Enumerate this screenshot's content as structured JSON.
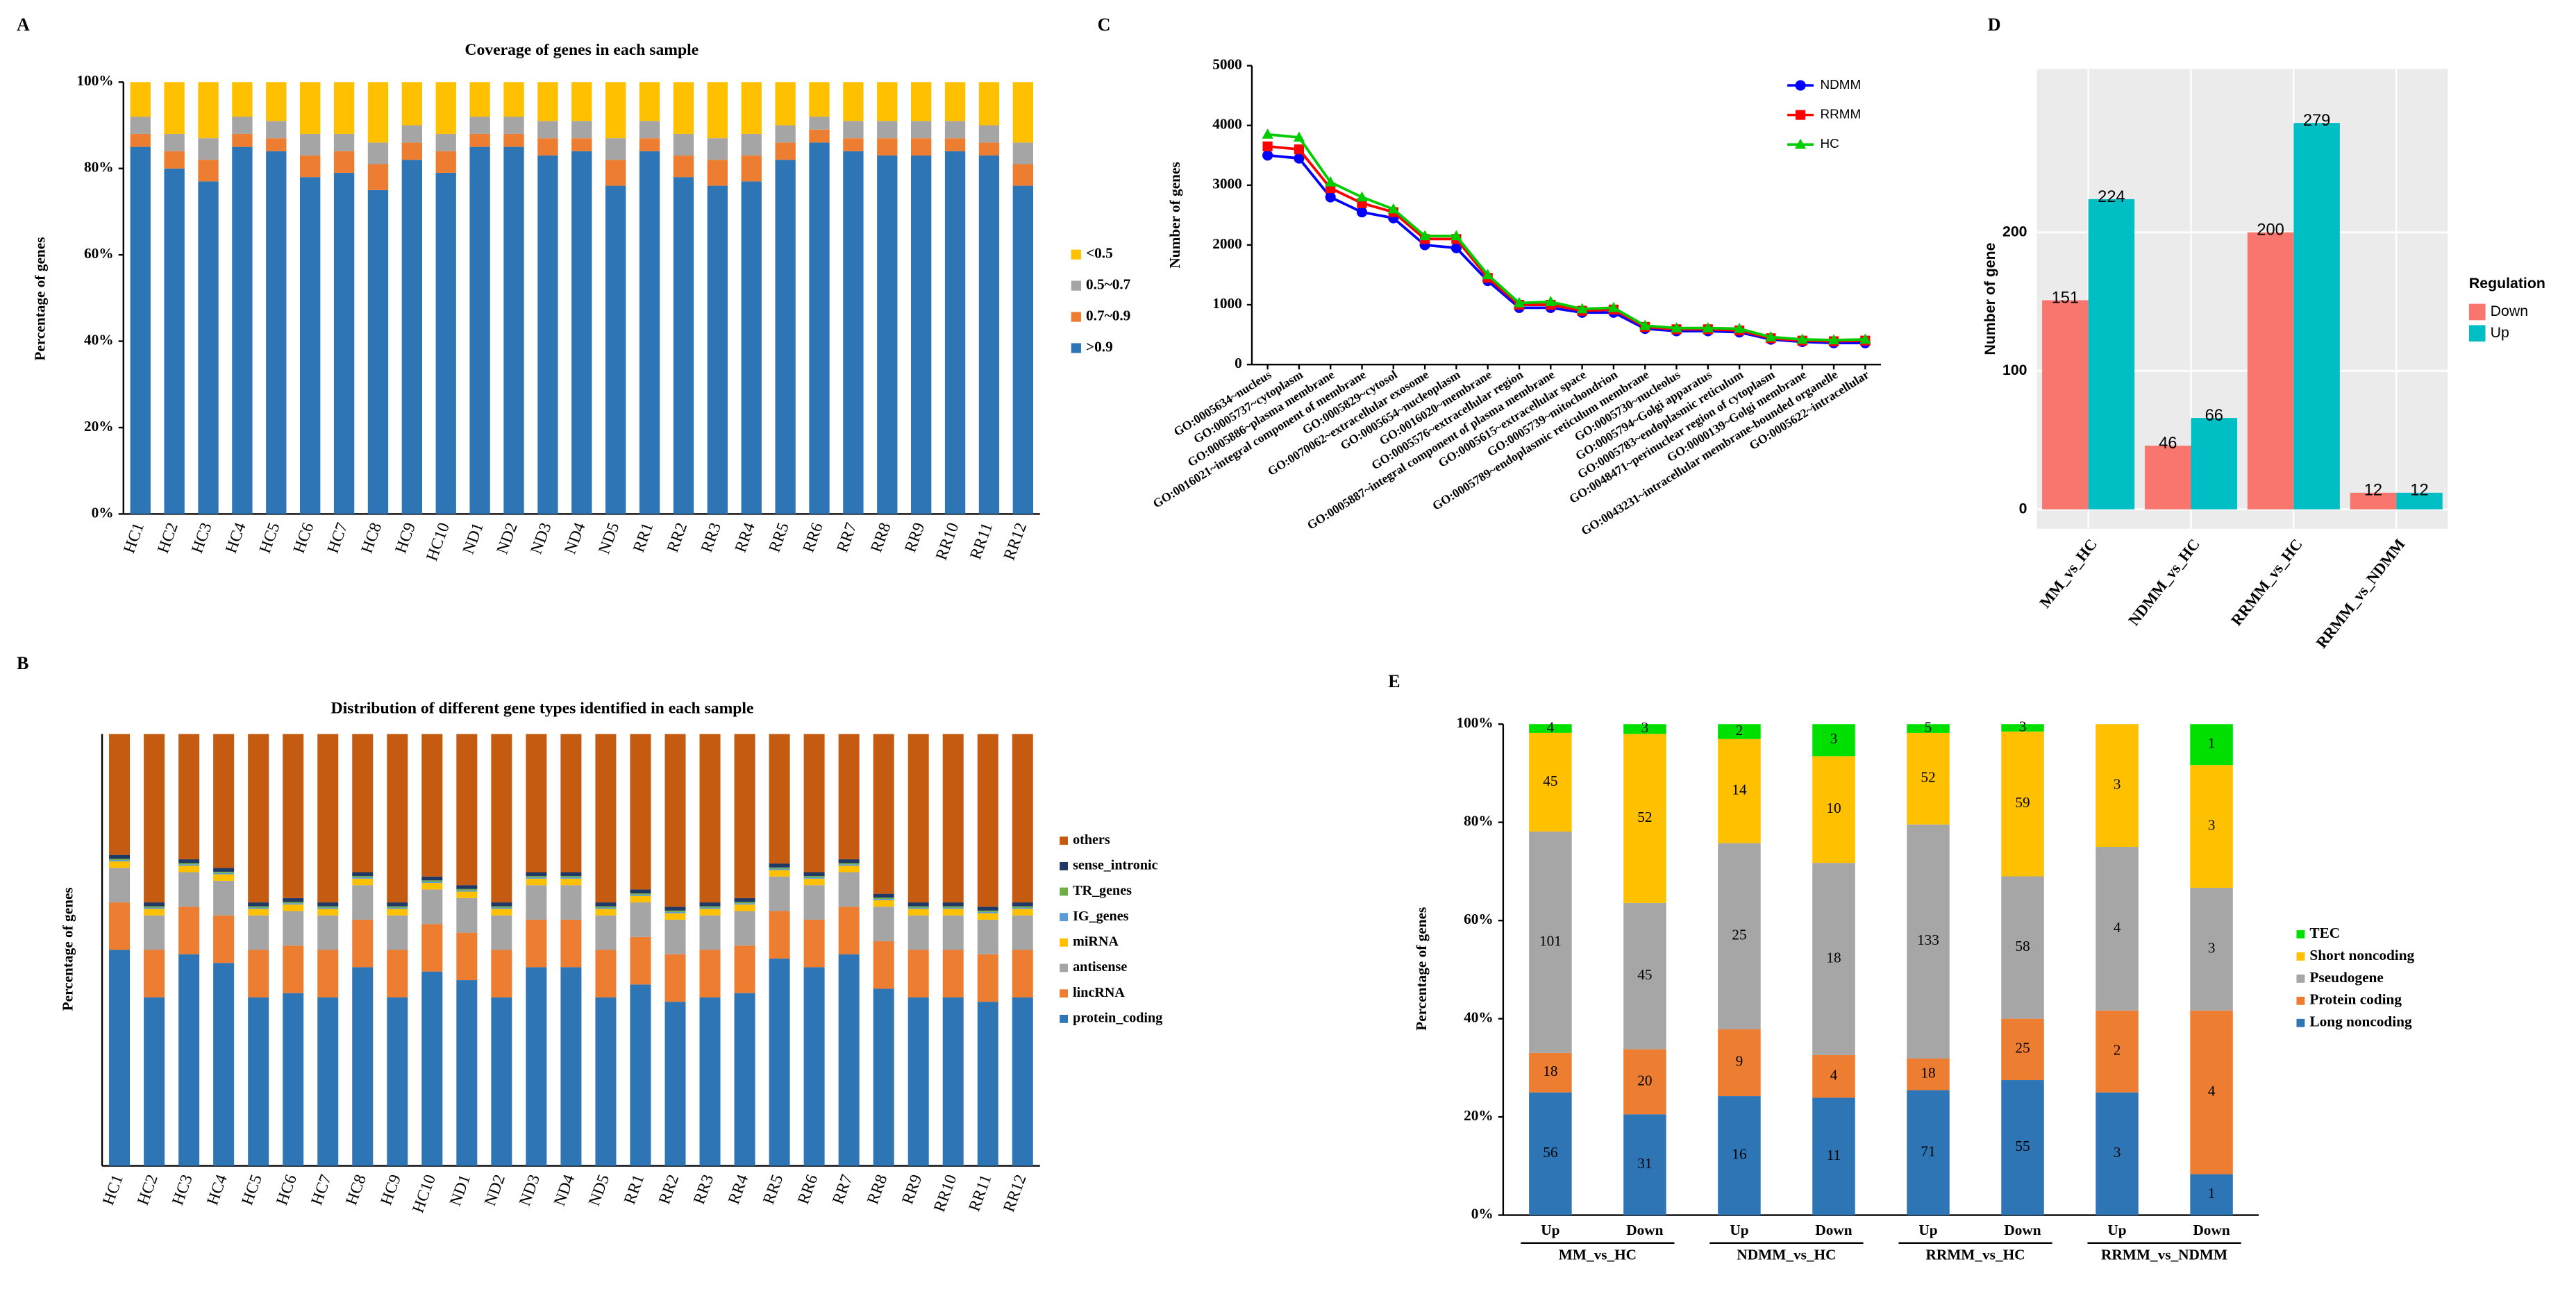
{
  "chart_data": [
    {
      "type": "bar",
      "stacked": true,
      "panel_label": "A",
      "title": "Coverage of genes in each sample",
      "ylabel": "Percentage of genes",
      "categories": [
        "HC1",
        "HC2",
        "HC3",
        "HC4",
        "HC5",
        "HC6",
        "HC7",
        "HC8",
        "HC9",
        "HC10",
        "ND1",
        "ND2",
        "ND3",
        "ND4",
        "ND5",
        "RR1",
        "RR2",
        "RR3",
        "RR4",
        "RR5",
        "RR6",
        "RR7",
        "RR8",
        "RR9",
        "RR10",
        "RR11",
        "RR12"
      ],
      "series": [
        {
          "name": ">0.9",
          "color": "#2e75b6",
          "values": [
            85,
            80,
            77,
            85,
            84,
            78,
            79,
            75,
            82,
            79,
            85,
            85,
            83,
            84,
            76,
            84,
            78,
            76,
            77,
            82,
            86,
            84,
            83,
            83,
            84,
            83,
            76
          ]
        },
        {
          "name": "0.7~0.9",
          "color": "#ed7d31",
          "values": [
            3,
            4,
            5,
            3,
            3,
            5,
            5,
            6,
            4,
            5,
            3,
            3,
            4,
            3,
            6,
            3,
            5,
            6,
            6,
            4,
            3,
            3,
            4,
            4,
            3,
            3,
            5
          ]
        },
        {
          "name": "0.5~0.7",
          "color": "#a5a5a5",
          "values": [
            4,
            4,
            5,
            4,
            4,
            5,
            4,
            5,
            4,
            4,
            4,
            4,
            4,
            4,
            5,
            4,
            5,
            5,
            5,
            4,
            3,
            4,
            4,
            4,
            4,
            4,
            5
          ]
        },
        {
          "name": "<0.5",
          "color": "#ffc000",
          "values": [
            8,
            12,
            13,
            8,
            9,
            12,
            12,
            14,
            10,
            12,
            8,
            8,
            9,
            9,
            13,
            9,
            12,
            13,
            12,
            10,
            8,
            9,
            9,
            9,
            9,
            10,
            14
          ]
        }
      ],
      "ylim": [
        0,
        100
      ],
      "yticks": [
        {
          "value": 0,
          "label": "0%"
        },
        {
          "value": 20,
          "label": "20%"
        },
        {
          "value": 40,
          "label": "40%"
        },
        {
          "value": 60,
          "label": "60%"
        },
        {
          "value": 80,
          "label": "80%"
        },
        {
          "value": 100,
          "label": "100%"
        }
      ],
      "legend": "right"
    },
    {
      "type": "bar",
      "stacked": true,
      "panel_label": "B",
      "title": "Distribution of different gene types identified in each sample",
      "ylabel": "Percentage of genes",
      "categories": [
        "HC1",
        "HC2",
        "HC3",
        "HC4",
        "HC5",
        "HC6",
        "HC7",
        "HC8",
        "HC9",
        "HC10",
        "ND1",
        "ND2",
        "ND3",
        "ND4",
        "ND5",
        "RR1",
        "RR2",
        "RR3",
        "RR4",
        "RR5",
        "RR6",
        "RR7",
        "RR8",
        "RR9",
        "RR10",
        "RR11",
        "RR12"
      ],
      "series": [
        {
          "name": "protein_coding",
          "color": "#2e75b6",
          "values": [
            50,
            39,
            49,
            47,
            39,
            40,
            39,
            46,
            39,
            45,
            43,
            39,
            46,
            46,
            39,
            42,
            38,
            39,
            40,
            48,
            46,
            49,
            41,
            39,
            39,
            38,
            39
          ]
        },
        {
          "name": "lincRNA",
          "color": "#ed7d31",
          "values": [
            11,
            11,
            11,
            11,
            11,
            11,
            11,
            11,
            11,
            11,
            11,
            11,
            11,
            11,
            11,
            11,
            11,
            11,
            11,
            11,
            11,
            11,
            11,
            11,
            11,
            11,
            11
          ]
        },
        {
          "name": "antisense",
          "color": "#a5a5a5",
          "values": [
            8,
            8,
            8,
            8,
            8,
            8,
            8,
            8,
            8,
            8,
            8,
            8,
            8,
            8,
            8,
            8,
            8,
            8,
            8,
            8,
            8,
            8,
            8,
            8,
            8,
            8,
            8
          ]
        },
        {
          "name": "miRNA",
          "color": "#ffc000",
          "values": [
            1.5,
            1.5,
            1.5,
            1.5,
            1.5,
            1.5,
            1.5,
            1.5,
            1.5,
            1.5,
            1.5,
            1.5,
            1.5,
            1.5,
            1.5,
            1.5,
            1.5,
            1.5,
            1.5,
            1.5,
            1.5,
            1.5,
            1.5,
            1.5,
            1.5,
            1.5,
            1.5
          ]
        },
        {
          "name": "IG_genes",
          "color": "#5b9bd5",
          "values": [
            0.3,
            0.3,
            0.3,
            0.3,
            0.3,
            0.3,
            0.3,
            0.3,
            0.3,
            0.3,
            0.3,
            0.3,
            0.3,
            0.3,
            0.3,
            0.3,
            0.3,
            0.3,
            0.3,
            0.3,
            0.3,
            0.3,
            0.3,
            0.3,
            0.3,
            0.3,
            0.3
          ]
        },
        {
          "name": "TR_genes",
          "color": "#70ad47",
          "values": [
            0.3,
            0.3,
            0.3,
            0.3,
            0.3,
            0.3,
            0.3,
            0.3,
            0.3,
            0.3,
            0.3,
            0.3,
            0.3,
            0.3,
            0.3,
            0.3,
            0.3,
            0.3,
            0.3,
            0.3,
            0.3,
            0.3,
            0.3,
            0.3,
            0.3,
            0.3,
            0.3
          ]
        },
        {
          "name": "sense_intronic",
          "color": "#1f3864",
          "values": [
            0.9,
            0.9,
            0.9,
            0.9,
            0.9,
            0.9,
            0.9,
            0.9,
            0.9,
            0.9,
            0.9,
            0.9,
            0.9,
            0.9,
            0.9,
            0.9,
            0.9,
            0.9,
            0.9,
            0.9,
            0.9,
            0.9,
            0.9,
            0.9,
            0.9,
            0.9,
            0.9
          ]
        },
        {
          "name": "others",
          "color": "#c55a11",
          "values": [
            28,
            39,
            29,
            31,
            39,
            38,
            39,
            32,
            39,
            33,
            35,
            39,
            32,
            32,
            39,
            36,
            40,
            39,
            38,
            30,
            32,
            29,
            37,
            39,
            39,
            40,
            39
          ]
        }
      ],
      "ylim": [
        0,
        100
      ],
      "legend": "right"
    },
    {
      "type": "line",
      "panel_label": "C",
      "ylabel": "Number of genes",
      "categories": [
        "GO:0005634~nucleus",
        "GO:0005737~cytoplasm",
        "GO:0005886~plasma membrane",
        "GO:0016021~integral component of membrane",
        "GO:0005829~cytosol",
        "GO:0070062~extracellular exosome",
        "GO:0005654~nucleoplasm",
        "GO:0016020~membrane",
        "GO:0005576~extracellular region",
        "GO:0005887~integral component of plasma membrane",
        "GO:0005615~extracellular space",
        "GO:0005739~mitochondrion",
        "GO:0005789~endoplasmic reticulum membrane",
        "GO:0005730~nucleolus",
        "GO:0005794~Golgi apparatus",
        "GO:0005783~endoplasmic reticulum",
        "GO:0048471~perinuclear region of cytoplasm",
        "GO:0000139~Golgi membrane",
        "GO:0043231~intracellular membrane-bounded organelle",
        "GO:0005622~intracellular"
      ],
      "series": [
        {
          "name": "NDMM",
          "color": "#0000ff",
          "marker": "circle",
          "values": [
            3500,
            3450,
            2800,
            2550,
            2450,
            2000,
            1950,
            1400,
            950,
            950,
            870,
            870,
            600,
            560,
            560,
            540,
            420,
            380,
            360,
            360
          ]
        },
        {
          "name": "RRMM",
          "color": "#ff0000",
          "marker": "square",
          "values": [
            3650,
            3600,
            2950,
            2700,
            2550,
            2100,
            2100,
            1450,
            1000,
            1000,
            900,
            920,
            630,
            590,
            590,
            570,
            440,
            400,
            390,
            400
          ]
        },
        {
          "name": "HC",
          "color": "#00cc00",
          "marker": "triangle",
          "values": [
            3850,
            3800,
            3050,
            2800,
            2600,
            2150,
            2150,
            1500,
            1030,
            1050,
            930,
            950,
            650,
            610,
            610,
            600,
            460,
            420,
            410,
            420
          ]
        }
      ],
      "ylim": [
        0,
        5000
      ],
      "yticks": [
        0,
        1000,
        2000,
        3000,
        4000,
        5000
      ],
      "legend": "upper right"
    },
    {
      "type": "grouped_bar",
      "panel_label": "D",
      "ylabel": "Number of gene",
      "legend_title": "Regulation",
      "categories": [
        "MM_vs_HC",
        "NDMM_vs_HC",
        "RRMM_vs_HC",
        "RRMM_vs_NDMM"
      ],
      "series": [
        {
          "name": "Down",
          "color": "#f8766d",
          "values": [
            151,
            46,
            200,
            12
          ]
        },
        {
          "name": "Up",
          "color": "#00bfc4",
          "values": [
            224,
            66,
            279,
            12
          ]
        }
      ],
      "ylim": [
        -14,
        318
      ],
      "yticks": [
        0,
        100,
        200
      ],
      "grid": true,
      "legend": "right"
    },
    {
      "type": "bar",
      "stacked": "percent",
      "panel_label": "E",
      "ylabel": "Percentage of genes",
      "categories": [
        "Up",
        "Down",
        "Up",
        "Down",
        "Up",
        "Down",
        "Up",
        "Down"
      ],
      "groups": [
        "MM_vs_HC",
        "NDMM_vs_HC",
        "RRMM_vs_HC",
        "RRMM_vs_NDMM"
      ],
      "series": [
        {
          "name": "Long noncoding",
          "color": "#2e75b6",
          "values": [
            56,
            31,
            16,
            11,
            71,
            55,
            3,
            1
          ]
        },
        {
          "name": "Protein coding",
          "color": "#ed7d31",
          "values": [
            18,
            20,
            9,
            4,
            18,
            25,
            2,
            4
          ]
        },
        {
          "name": "Pseudogene",
          "color": "#a6a6a6",
          "values": [
            101,
            45,
            25,
            18,
            133,
            58,
            4,
            3
          ]
        },
        {
          "name": "Short noncoding",
          "color": "#ffc000",
          "values": [
            45,
            52,
            14,
            10,
            52,
            59,
            3,
            3
          ]
        },
        {
          "name": "TEC",
          "color": "#00e000",
          "values": [
            4,
            3,
            2,
            3,
            5,
            3,
            0,
            1
          ]
        }
      ],
      "ylim": [
        0,
        100
      ],
      "yticks": [
        {
          "value": 0,
          "label": "0%"
        },
        {
          "value": 20,
          "label": "20%"
        },
        {
          "value": 40,
          "label": "40%"
        },
        {
          "value": 60,
          "label": "60%"
        },
        {
          "value": 80,
          "label": "80%"
        },
        {
          "value": 100,
          "label": "100%"
        }
      ],
      "legend": "right"
    }
  ]
}
